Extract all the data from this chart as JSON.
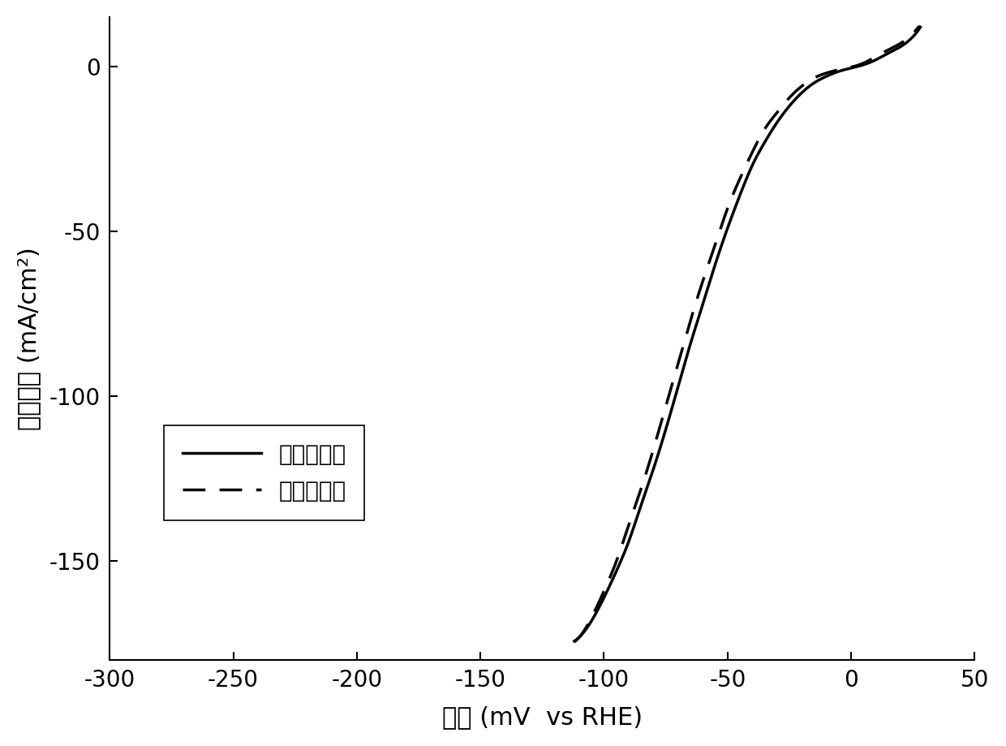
{
  "xlabel": "电势 (mV  vs RHE)",
  "ylabel": "电流密度 (mA/cm²)",
  "xlim": [
    -300,
    50
  ],
  "ylim": [
    -180,
    15
  ],
  "xticks": [
    -300,
    -250,
    -200,
    -150,
    -100,
    -50,
    0,
    50
  ],
  "yticks": [
    -150,
    -100,
    -50,
    0
  ],
  "legend_after": "稳定测试后",
  "legend_before": "稳定测试前",
  "line_color": "#000000",
  "background_color": "#ffffff",
  "xlabel_fontsize": 22,
  "ylabel_fontsize": 22,
  "tick_fontsize": 20,
  "legend_fontsize": 20,
  "line_width": 2.5,
  "after_x": [
    -110,
    -105,
    -100,
    -95,
    -90,
    -85,
    -80,
    -75,
    -70,
    -65,
    -60,
    -55,
    -50,
    -45,
    -40,
    -35,
    -30,
    -25,
    -20,
    -15,
    -10,
    -5,
    0,
    5,
    10,
    15,
    20,
    25
  ],
  "after_y": [
    -173,
    -168,
    -161,
    -153,
    -144,
    -133,
    -122,
    -110,
    -97,
    -84,
    -72,
    -60,
    -49,
    -39,
    -30,
    -23,
    -17,
    -12,
    -8,
    -5,
    -3,
    -1.5,
    -0.5,
    0.5,
    2,
    4,
    6,
    9
  ],
  "before_x": [
    -110,
    -105,
    -100,
    -95,
    -90,
    -85,
    -80,
    -75,
    -70,
    -65,
    -60,
    -55,
    -50,
    -45,
    -40,
    -35,
    -30,
    -25,
    -20,
    -15,
    -10,
    -5,
    0,
    5,
    10,
    15,
    20,
    25
  ],
  "before_y": [
    -173,
    -167,
    -159,
    -150,
    -139,
    -128,
    -116,
    -103,
    -90,
    -77,
    -65,
    -54,
    -43,
    -34,
    -26,
    -19,
    -14,
    -9.5,
    -6,
    -3.5,
    -2,
    -1,
    -0.2,
    1,
    3,
    5,
    7,
    10
  ]
}
